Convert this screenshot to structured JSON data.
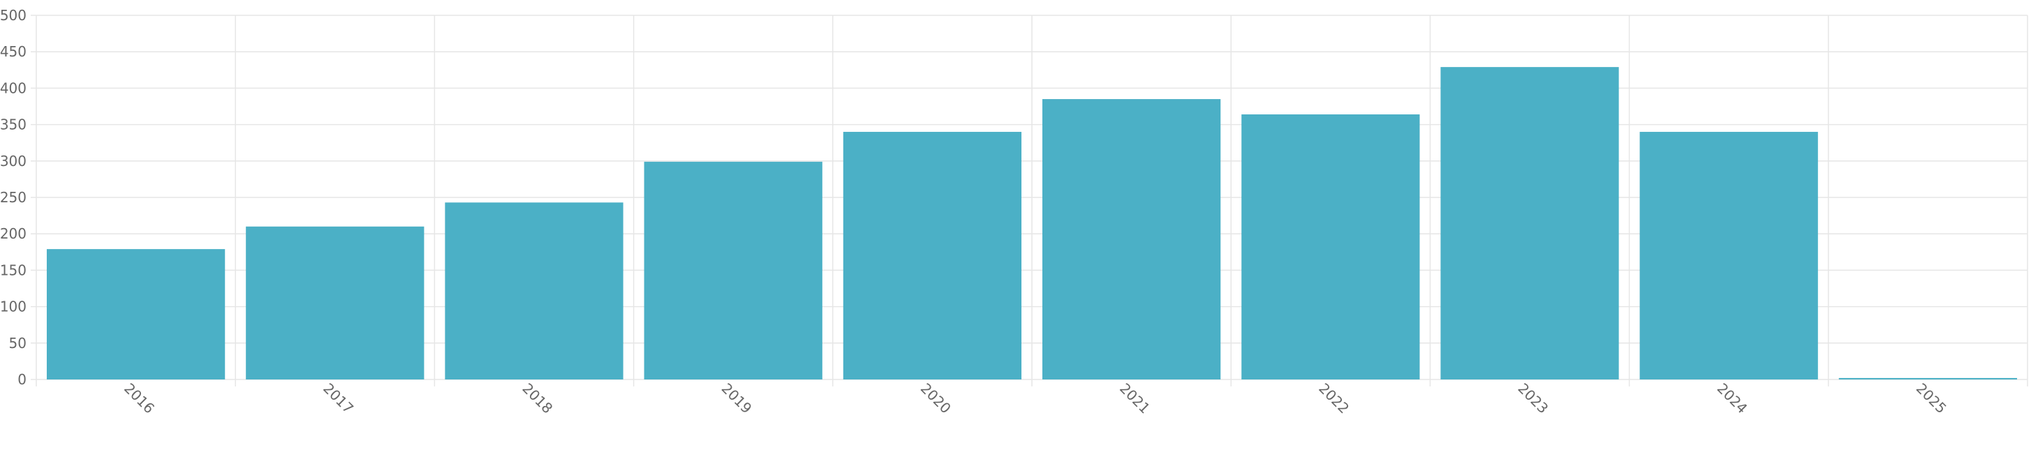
{
  "chart_data": {
    "type": "bar",
    "title": "",
    "xlabel": "",
    "ylabel": "",
    "categories": [
      "2016",
      "2017",
      "2018",
      "2019",
      "2020",
      "2021",
      "2022",
      "2023",
      "2024",
      "2025"
    ],
    "values": [
      179,
      210,
      243,
      299,
      340,
      385,
      364,
      429,
      340,
      2
    ],
    "ylim": [
      0,
      500
    ],
    "yticks": [
      0,
      50,
      100,
      150,
      200,
      250,
      300,
      350,
      400,
      450,
      500
    ],
    "grid": true,
    "legend": "none",
    "bar_color": "#4bb0c6",
    "grid_color": "#e6e6e6",
    "tick_color": "#666666"
  }
}
